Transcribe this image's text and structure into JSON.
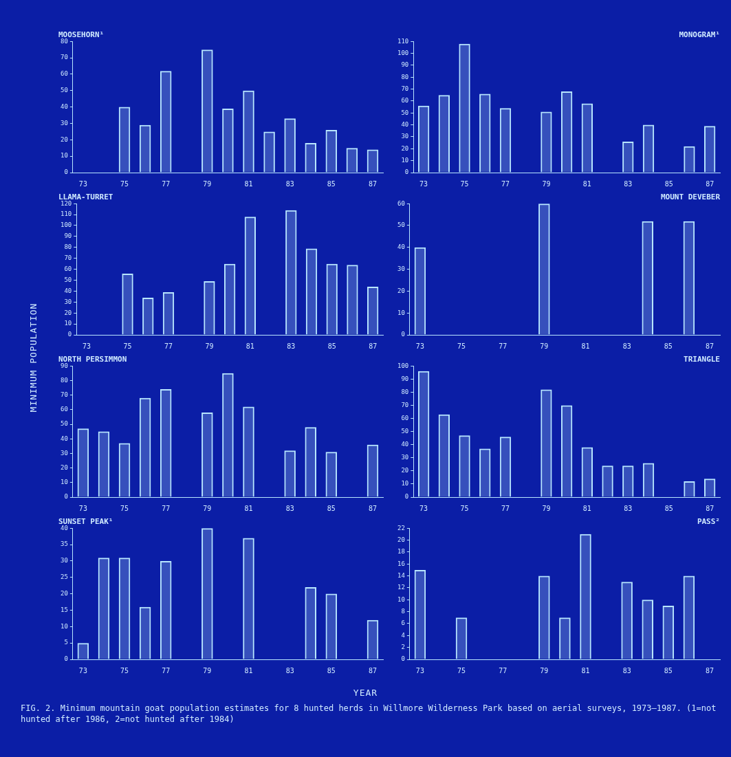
{
  "chart_data": [
    {
      "type": "bar",
      "title": "MOOSEHORN¹",
      "categories": [
        "73",
        null,
        "75",
        null,
        "77",
        null,
        "79",
        null,
        "81",
        null,
        "83",
        null,
        "85",
        null,
        "87"
      ],
      "color": "#b8e6ff",
      "values": [
        null,
        null,
        40,
        29,
        62,
        null,
        75,
        39,
        50,
        25,
        33,
        18,
        26,
        15,
        14
      ],
      "ylim": [
        0,
        80
      ],
      "yticks": [
        0,
        10,
        20,
        30,
        40,
        50,
        60,
        70,
        80
      ],
      "grid": false,
      "legend": false
    },
    {
      "type": "bar",
      "title": "MONOGRAM¹",
      "categories": [
        "73",
        null,
        "75",
        null,
        "77",
        null,
        "79",
        null,
        "81",
        null,
        "83",
        null,
        "85",
        null,
        "87"
      ],
      "color": "#b8e6ff",
      "values": [
        56,
        65,
        108,
        66,
        54,
        null,
        51,
        68,
        58,
        null,
        26,
        40,
        null,
        22,
        39
      ],
      "ylim": [
        0,
        110
      ],
      "yticks": [
        0,
        10,
        20,
        30,
        40,
        50,
        60,
        70,
        80,
        90,
        100,
        110
      ],
      "grid": false,
      "legend": false
    },
    {
      "type": "bar",
      "title": "LLAMA-TURRET",
      "categories": [
        "73",
        null,
        "75",
        null,
        "77",
        null,
        "79",
        null,
        "81",
        null,
        "83",
        null,
        "85",
        null,
        "87"
      ],
      "color": "#b8e6ff",
      "values": [
        null,
        null,
        56,
        34,
        39,
        null,
        49,
        65,
        108,
        null,
        114,
        79,
        65,
        64,
        44
      ],
      "ylim": [
        0,
        120
      ],
      "yticks": [
        0,
        10,
        20,
        30,
        40,
        50,
        60,
        70,
        80,
        90,
        100,
        110,
        120
      ],
      "grid": false,
      "legend": false
    },
    {
      "type": "bar",
      "title": "MOUNT DEVEBER",
      "categories": [
        "73",
        null,
        "75",
        null,
        "77",
        null,
        "79",
        null,
        "81",
        null,
        "83",
        null,
        "85",
        null,
        "87"
      ],
      "color": "#b8e6ff",
      "values": [
        40,
        null,
        null,
        null,
        null,
        null,
        60,
        null,
        null,
        null,
        null,
        52,
        null,
        52,
        null
      ],
      "ylim": [
        0,
        60
      ],
      "yticks": [
        0,
        10,
        20,
        30,
        40,
        50,
        60
      ],
      "grid": false,
      "legend": false
    },
    {
      "type": "bar",
      "title": "NORTH PERSIMMON",
      "categories": [
        "73",
        null,
        "75",
        null,
        "77",
        null,
        "79",
        null,
        "81",
        null,
        "83",
        null,
        "85",
        null,
        "87"
      ],
      "color": "#b8e6ff",
      "values": [
        47,
        45,
        37,
        68,
        74,
        null,
        58,
        85,
        62,
        null,
        32,
        48,
        31,
        null,
        36
      ],
      "ylim": [
        0,
        90
      ],
      "yticks": [
        0,
        10,
        20,
        30,
        40,
        50,
        60,
        70,
        80,
        90
      ],
      "grid": false,
      "legend": false
    },
    {
      "type": "bar",
      "title": "TRIANGLE",
      "categories": [
        "73",
        null,
        "75",
        null,
        "77",
        null,
        "79",
        null,
        "81",
        null,
        "83",
        null,
        "85",
        null,
        "87"
      ],
      "color": "#b8e6ff",
      "values": [
        96,
        63,
        47,
        37,
        46,
        null,
        82,
        70,
        38,
        24,
        24,
        26,
        null,
        12,
        14
      ],
      "ylim": [
        0,
        100
      ],
      "yticks": [
        0,
        10,
        20,
        30,
        40,
        50,
        60,
        70,
        80,
        90,
        100
      ],
      "grid": false,
      "legend": false
    },
    {
      "type": "bar",
      "title": "SUNSET PEAK¹",
      "categories": [
        "73",
        null,
        "75",
        null,
        "77",
        null,
        "79",
        null,
        "81",
        null,
        "83",
        null,
        "85",
        null,
        "87"
      ],
      "color": "#b8e6ff",
      "values": [
        5,
        31,
        31,
        16,
        30,
        null,
        40,
        null,
        37,
        null,
        null,
        22,
        20,
        null,
        12
      ],
      "ylim": [
        0,
        40
      ],
      "yticks": [
        0,
        5,
        10,
        15,
        20,
        25,
        30,
        35,
        40
      ],
      "grid": false,
      "legend": false
    },
    {
      "type": "bar",
      "title": "PASS²",
      "categories": [
        "73",
        null,
        "75",
        null,
        "77",
        null,
        "79",
        null,
        "81",
        null,
        "83",
        null,
        "85",
        null,
        "87"
      ],
      "color": "#b8e6ff",
      "values": [
        15,
        null,
        7,
        null,
        null,
        null,
        14,
        7,
        21,
        null,
        13,
        10,
        9,
        14,
        null
      ],
      "ylim": [
        0,
        22
      ],
      "yticks": [
        0,
        2,
        4,
        6,
        8,
        10,
        12,
        14,
        16,
        18,
        20,
        22
      ],
      "grid": false,
      "legend": false
    },
    {
      "type": "other",
      "xlabel": "YEAR",
      "ylabel": "MINIMUM POPULATION",
      "annotations": [
        "FIG. 2. Minimum mountain goat population estimates for 8 hunted herds in Willmore Wilderness Park based on aerial surveys, 1973–1987. (1=not hunted after 1986, 2=not hunted after 1984)"
      ]
    }
  ]
}
